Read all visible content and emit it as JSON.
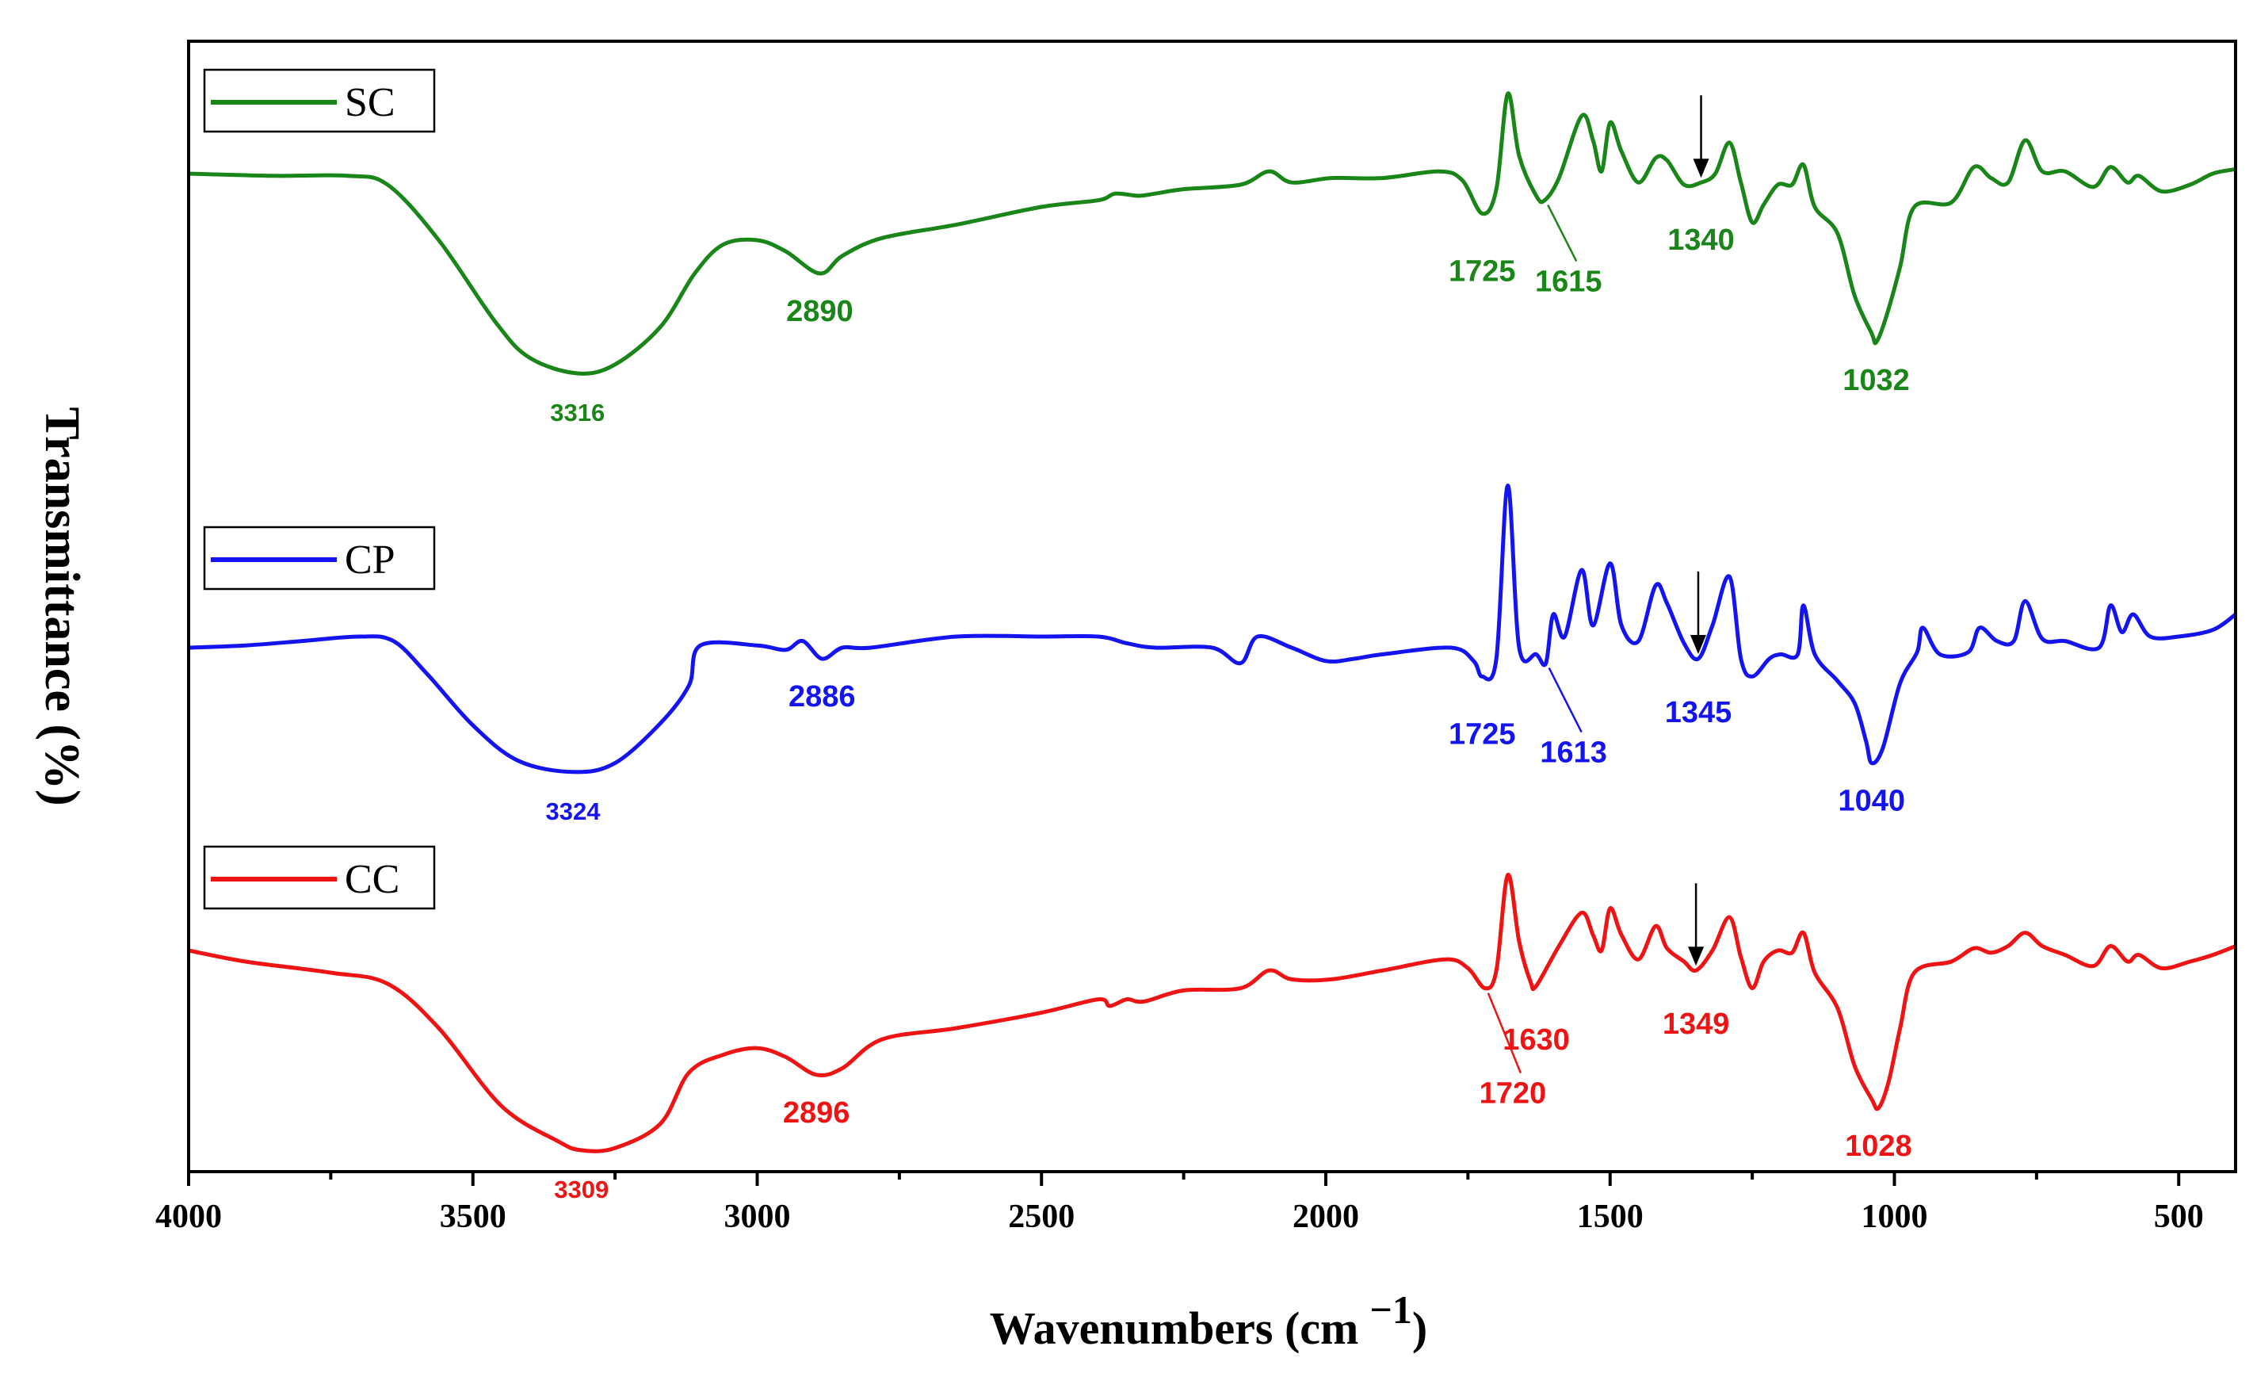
{
  "chart_data": {
    "type": "line",
    "xlabel": "Wavenumbers (cm",
    "xlabel_superscript": "−1",
    "xlabel_close": ")",
    "ylabel": "Transmittance (%)",
    "xlim": [
      4000,
      400
    ],
    "x_reversed": true,
    "x_ticks": [
      4000,
      3500,
      3000,
      2500,
      2000,
      1500,
      1000,
      500
    ],
    "y_ticks_shown": false,
    "grid": false,
    "series": [
      {
        "name": "SC",
        "color": "#1a8518",
        "offset": 0,
        "points": [
          [
            4000,
            0.05
          ],
          [
            3850,
            0.06
          ],
          [
            3720,
            0.06
          ],
          [
            3650,
            0.1
          ],
          [
            3560,
            0.35
          ],
          [
            3460,
            0.72
          ],
          [
            3400,
            0.88
          ],
          [
            3316,
            0.95
          ],
          [
            3250,
            0.91
          ],
          [
            3170,
            0.74
          ],
          [
            3110,
            0.5
          ],
          [
            3060,
            0.37
          ],
          [
            3000,
            0.35
          ],
          [
            2950,
            0.4
          ],
          [
            2890,
            0.5
          ],
          [
            2850,
            0.42
          ],
          [
            2780,
            0.34
          ],
          [
            2650,
            0.28
          ],
          [
            2500,
            0.2
          ],
          [
            2400,
            0.17
          ],
          [
            2370,
            0.14
          ],
          [
            2330,
            0.15
          ],
          [
            2300,
            0.14
          ],
          [
            2250,
            0.12
          ],
          [
            2150,
            0.1
          ],
          [
            2100,
            0.04
          ],
          [
            2060,
            0.09
          ],
          [
            1990,
            0.07
          ],
          [
            1900,
            0.07
          ],
          [
            1800,
            0.04
          ],
          [
            1760,
            0.08
          ],
          [
            1725,
            0.23
          ],
          [
            1700,
            0.12
          ],
          [
            1680,
            -0.31
          ],
          [
            1660,
            -0.03
          ],
          [
            1630,
            0.15
          ],
          [
            1615,
            0.17
          ],
          [
            1590,
            0.07
          ],
          [
            1550,
            -0.21
          ],
          [
            1530,
            -0.1
          ],
          [
            1515,
            0.04
          ],
          [
            1500,
            -0.18
          ],
          [
            1480,
            -0.05
          ],
          [
            1450,
            0.09
          ],
          [
            1420,
            -0.02
          ],
          [
            1400,
            -0.01
          ],
          [
            1370,
            0.1
          ],
          [
            1340,
            0.09
          ],
          [
            1315,
            0.05
          ],
          [
            1290,
            -0.09
          ],
          [
            1270,
            0.09
          ],
          [
            1250,
            0.27
          ],
          [
            1230,
            0.19
          ],
          [
            1205,
            0.1
          ],
          [
            1180,
            0.1
          ],
          [
            1160,
            0.01
          ],
          [
            1140,
            0.2
          ],
          [
            1100,
            0.32
          ],
          [
            1070,
            0.6
          ],
          [
            1040,
            0.77
          ],
          [
            1032,
            0.81
          ],
          [
            1015,
            0.7
          ],
          [
            990,
            0.47
          ],
          [
            965,
            0.2
          ],
          [
            900,
            0.18
          ],
          [
            860,
            0.02
          ],
          [
            830,
            0.07
          ],
          [
            800,
            0.09
          ],
          [
            770,
            -0.1
          ],
          [
            740,
            0.04
          ],
          [
            700,
            0.04
          ],
          [
            650,
            0.11
          ],
          [
            620,
            0.02
          ],
          [
            590,
            0.09
          ],
          [
            570,
            0.06
          ],
          [
            530,
            0.13
          ],
          [
            480,
            0.1
          ],
          [
            440,
            0.05
          ],
          [
            400,
            0.03
          ]
        ]
      },
      {
        "name": "CP",
        "color": "#1414f0",
        "offset": 1,
        "points": [
          [
            4000,
            0.05
          ],
          [
            3900,
            0.04
          ],
          [
            3800,
            0.02
          ],
          [
            3700,
            0.0
          ],
          [
            3640,
            0.02
          ],
          [
            3580,
            0.17
          ],
          [
            3500,
            0.4
          ],
          [
            3420,
            0.56
          ],
          [
            3324,
            0.61
          ],
          [
            3250,
            0.57
          ],
          [
            3170,
            0.39
          ],
          [
            3120,
            0.22
          ],
          [
            3100,
            0.04
          ],
          [
            3000,
            0.04
          ],
          [
            2950,
            0.06
          ],
          [
            2920,
            0.02
          ],
          [
            2886,
            0.1
          ],
          [
            2850,
            0.05
          ],
          [
            2800,
            0.05
          ],
          [
            2650,
            0.0
          ],
          [
            2500,
            0.0
          ],
          [
            2400,
            0.0
          ],
          [
            2350,
            0.03
          ],
          [
            2300,
            0.05
          ],
          [
            2200,
            0.05
          ],
          [
            2150,
            0.12
          ],
          [
            2120,
            0.0
          ],
          [
            2060,
            0.05
          ],
          [
            2000,
            0.11
          ],
          [
            1950,
            0.1
          ],
          [
            1900,
            0.08
          ],
          [
            1780,
            0.05
          ],
          [
            1740,
            0.11
          ],
          [
            1725,
            0.18
          ],
          [
            1700,
            0.1
          ],
          [
            1680,
            -0.68
          ],
          [
            1660,
            0.05
          ],
          [
            1630,
            0.08
          ],
          [
            1613,
            0.12
          ],
          [
            1600,
            -0.1
          ],
          [
            1580,
            0.0
          ],
          [
            1550,
            -0.3
          ],
          [
            1530,
            -0.05
          ],
          [
            1500,
            -0.33
          ],
          [
            1480,
            -0.05
          ],
          [
            1450,
            0.02
          ],
          [
            1420,
            -0.23
          ],
          [
            1400,
            -0.15
          ],
          [
            1370,
            0.03
          ],
          [
            1345,
            0.1
          ],
          [
            1320,
            -0.05
          ],
          [
            1290,
            -0.27
          ],
          [
            1270,
            0.1
          ],
          [
            1250,
            0.18
          ],
          [
            1220,
            0.1
          ],
          [
            1200,
            0.08
          ],
          [
            1170,
            0.08
          ],
          [
            1160,
            -0.14
          ],
          [
            1140,
            0.08
          ],
          [
            1100,
            0.2
          ],
          [
            1070,
            0.3
          ],
          [
            1050,
            0.47
          ],
          [
            1040,
            0.57
          ],
          [
            1020,
            0.5
          ],
          [
            990,
            0.21
          ],
          [
            960,
            0.07
          ],
          [
            950,
            -0.04
          ],
          [
            920,
            0.08
          ],
          [
            870,
            0.07
          ],
          [
            850,
            -0.04
          ],
          [
            820,
            0.02
          ],
          [
            790,
            0.02
          ],
          [
            770,
            -0.16
          ],
          [
            740,
            0.01
          ],
          [
            700,
            0.02
          ],
          [
            640,
            0.05
          ],
          [
            620,
            -0.14
          ],
          [
            600,
            -0.02
          ],
          [
            580,
            -0.1
          ],
          [
            550,
            0.0
          ],
          [
            500,
            0.0
          ],
          [
            440,
            -0.03
          ],
          [
            400,
            -0.1
          ]
        ]
      },
      {
        "name": "CC",
        "color": "#ef1414",
        "offset": 2,
        "points": [
          [
            4000,
            0.05
          ],
          [
            3900,
            0.1
          ],
          [
            3750,
            0.15
          ],
          [
            3650,
            0.2
          ],
          [
            3560,
            0.4
          ],
          [
            3450,
            0.75
          ],
          [
            3350,
            0.91
          ],
          [
            3309,
            0.95
          ],
          [
            3250,
            0.94
          ],
          [
            3170,
            0.83
          ],
          [
            3120,
            0.6
          ],
          [
            3060,
            0.52
          ],
          [
            3000,
            0.49
          ],
          [
            2950,
            0.53
          ],
          [
            2896,
            0.61
          ],
          [
            2850,
            0.58
          ],
          [
            2780,
            0.45
          ],
          [
            2650,
            0.4
          ],
          [
            2500,
            0.33
          ],
          [
            2400,
            0.27
          ],
          [
            2380,
            0.3
          ],
          [
            2350,
            0.27
          ],
          [
            2320,
            0.28
          ],
          [
            2250,
            0.23
          ],
          [
            2150,
            0.22
          ],
          [
            2100,
            0.14
          ],
          [
            2060,
            0.18
          ],
          [
            1990,
            0.18
          ],
          [
            1900,
            0.14
          ],
          [
            1790,
            0.09
          ],
          [
            1750,
            0.13
          ],
          [
            1720,
            0.22
          ],
          [
            1700,
            0.14
          ],
          [
            1680,
            -0.29
          ],
          [
            1660,
            0.01
          ],
          [
            1640,
            0.19
          ],
          [
            1630,
            0.21
          ],
          [
            1590,
            0.03
          ],
          [
            1550,
            -0.12
          ],
          [
            1530,
            -0.02
          ],
          [
            1515,
            0.05
          ],
          [
            1500,
            -0.14
          ],
          [
            1480,
            -0.02
          ],
          [
            1450,
            0.09
          ],
          [
            1420,
            -0.06
          ],
          [
            1400,
            0.04
          ],
          [
            1370,
            0.1
          ],
          [
            1349,
            0.14
          ],
          [
            1320,
            0.05
          ],
          [
            1290,
            -0.1
          ],
          [
            1270,
            0.08
          ],
          [
            1250,
            0.22
          ],
          [
            1230,
            0.1
          ],
          [
            1205,
            0.05
          ],
          [
            1180,
            0.06
          ],
          [
            1160,
            -0.03
          ],
          [
            1140,
            0.15
          ],
          [
            1100,
            0.31
          ],
          [
            1070,
            0.57
          ],
          [
            1040,
            0.72
          ],
          [
            1028,
            0.76
          ],
          [
            1010,
            0.64
          ],
          [
            990,
            0.4
          ],
          [
            965,
            0.15
          ],
          [
            900,
            0.1
          ],
          [
            860,
            0.04
          ],
          [
            830,
            0.06
          ],
          [
            800,
            0.03
          ],
          [
            770,
            -0.03
          ],
          [
            740,
            0.03
          ],
          [
            700,
            0.07
          ],
          [
            650,
            0.12
          ],
          [
            620,
            0.03
          ],
          [
            590,
            0.1
          ],
          [
            570,
            0.07
          ],
          [
            530,
            0.13
          ],
          [
            480,
            0.1
          ],
          [
            440,
            0.07
          ],
          [
            400,
            0.03
          ]
        ]
      }
    ],
    "peak_labels": [
      {
        "series": "SC",
        "text": "3316",
        "x": 3316,
        "small": true
      },
      {
        "series": "SC",
        "text": "2890",
        "x": 2890
      },
      {
        "series": "SC",
        "text": "1725",
        "x": 1725
      },
      {
        "series": "SC",
        "text": "1615",
        "x": 1615,
        "leader": true
      },
      {
        "series": "SC",
        "text": "1340",
        "x": 1340,
        "arrow": true
      },
      {
        "series": "SC",
        "text": "1032",
        "x": 1032
      },
      {
        "series": "CP",
        "text": "3324",
        "x": 3324,
        "small": true
      },
      {
        "series": "CP",
        "text": "2886",
        "x": 2886
      },
      {
        "series": "CP",
        "text": "1725",
        "x": 1725
      },
      {
        "series": "CP",
        "text": "1613",
        "x": 1613,
        "leader": true
      },
      {
        "series": "CP",
        "text": "1345",
        "x": 1345,
        "arrow": true
      },
      {
        "series": "CP",
        "text": "1040",
        "x": 1040
      },
      {
        "series": "CC",
        "text": "3309",
        "x": 3309,
        "small": true
      },
      {
        "series": "CC",
        "text": "2896",
        "x": 2896
      },
      {
        "series": "CC",
        "text": "1720",
        "x": 1720,
        "leader": true
      },
      {
        "series": "CC",
        "text": "1630",
        "x": 1630
      },
      {
        "series": "CC",
        "text": "1349",
        "x": 1349,
        "arrow": true
      },
      {
        "series": "CC",
        "text": "1028",
        "x": 1028
      }
    ]
  }
}
